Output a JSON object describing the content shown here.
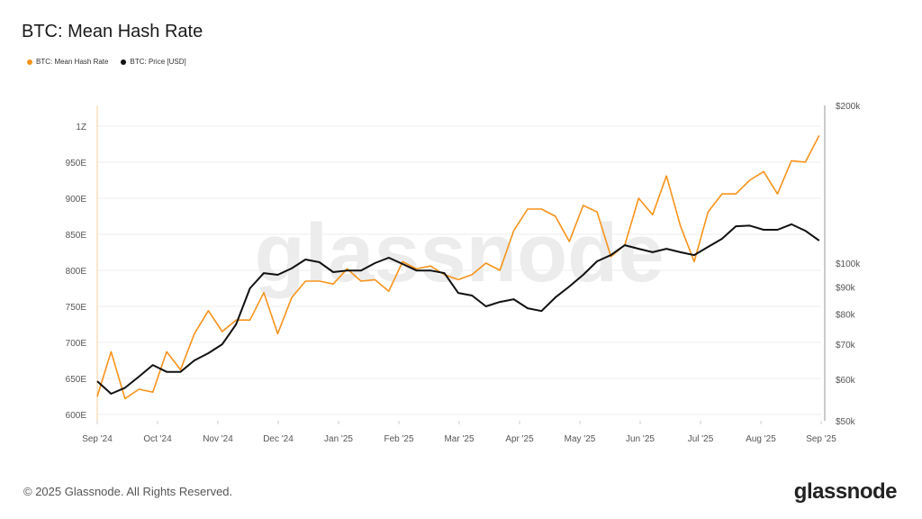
{
  "title": "BTC: Mean Hash Rate",
  "footer": "© 2025 Glassnode. All Rights Reserved.",
  "logo": "glassnode",
  "watermark": "glassnode",
  "colors": {
    "hash_rate": "#f7931a",
    "price": "#111111",
    "grid": "#ececec"
  },
  "chart_data": {
    "type": "line",
    "title": "BTC: Mean Hash Rate",
    "legend_placement": "top-left",
    "grid": true,
    "x_tick_labels": [
      "Sep '24",
      "Oct '24",
      "Nov '24",
      "Dec '24",
      "Jan '25",
      "Feb '25",
      "Mar '25",
      "Apr '25",
      "May '25",
      "Jun '25",
      "Jul '25",
      "Aug '25",
      "Sep '25"
    ],
    "x_range": [
      "2024-09-01",
      "2025-09-01"
    ],
    "y_left": {
      "tick_labels": [
        "600E",
        "650E",
        "700E",
        "750E",
        "800E",
        "850E",
        "900E",
        "950E",
        "1Z"
      ],
      "tick_values": [
        600,
        650,
        700,
        750,
        800,
        850,
        900,
        950,
        1000
      ],
      "unit": "EH/s",
      "range": [
        591,
        1000
      ]
    },
    "y_right": {
      "scale": "log",
      "tick_labels": [
        "$50k",
        "$60k",
        "$70k",
        "$80k",
        "$90k",
        "$100k",
        "$200k"
      ],
      "tick_values": [
        50000,
        60000,
        70000,
        80000,
        90000,
        100000,
        200000
      ],
      "range": [
        50000,
        200000
      ]
    },
    "x": [
      "2024-09-01",
      "2024-09-08",
      "2024-09-15",
      "2024-09-22",
      "2024-09-29",
      "2024-10-06",
      "2024-10-13",
      "2024-10-20",
      "2024-10-27",
      "2024-11-03",
      "2024-11-10",
      "2024-11-17",
      "2024-11-24",
      "2024-12-01",
      "2024-12-08",
      "2024-12-15",
      "2024-12-22",
      "2024-12-29",
      "2025-01-05",
      "2025-01-12",
      "2025-01-19",
      "2025-01-26",
      "2025-02-02",
      "2025-02-09",
      "2025-02-16",
      "2025-02-23",
      "2025-03-02",
      "2025-03-09",
      "2025-03-16",
      "2025-03-23",
      "2025-03-30",
      "2025-04-06",
      "2025-04-13",
      "2025-04-20",
      "2025-04-27",
      "2025-05-04",
      "2025-05-11",
      "2025-05-18",
      "2025-05-25",
      "2025-06-01",
      "2025-06-08",
      "2025-06-15",
      "2025-06-22",
      "2025-06-29",
      "2025-07-06",
      "2025-07-13",
      "2025-07-20",
      "2025-07-27",
      "2025-08-03",
      "2025-08-10",
      "2025-08-17",
      "2025-08-24",
      "2025-08-31"
    ],
    "series": [
      {
        "name": "BTC: Mean Hash Rate",
        "axis": "left",
        "color": "#f7931a",
        "values": [
          625,
          687,
          622,
          635,
          631,
          687,
          662,
          712,
          744,
          715,
          731,
          731,
          769,
          712,
          762,
          785,
          785,
          781,
          802,
          785,
          787,
          771,
          812,
          802,
          806,
          794,
          787,
          794,
          810,
          800,
          855,
          885,
          885,
          875,
          840,
          890,
          881,
          819,
          835,
          900,
          877,
          931,
          862,
          812,
          881,
          906,
          906,
          925,
          937,
          906,
          952,
          950,
          987
        ]
      },
      {
        "name": "BTC: Price [USD]",
        "axis": "right",
        "color": "#111111",
        "values": [
          59500,
          56300,
          57800,
          60700,
          63900,
          62000,
          62000,
          65200,
          67300,
          70000,
          76400,
          89500,
          95700,
          95000,
          97700,
          101600,
          100400,
          96100,
          96800,
          96800,
          100000,
          102400,
          99600,
          96800,
          96800,
          95700,
          87700,
          86700,
          82700,
          84300,
          85300,
          82000,
          81000,
          86000,
          90200,
          95000,
          100800,
          103600,
          108200,
          106500,
          104900,
          106500,
          104900,
          103600,
          107400,
          111300,
          117600,
          117900,
          115800,
          115800,
          118600,
          115300,
          110400
        ]
      }
    ]
  }
}
